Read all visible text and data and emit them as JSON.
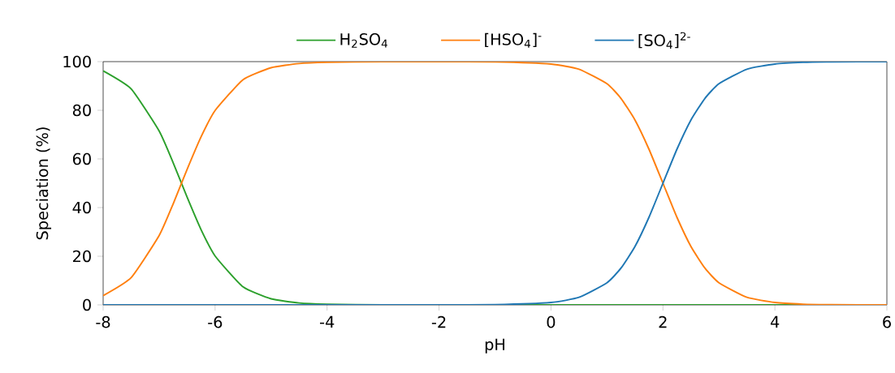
{
  "chart_data": {
    "type": "line",
    "xlabel": "pH",
    "ylabel": "Speciation (%)",
    "x": [
      -8,
      -7.5,
      -7,
      -6.75,
      -6.5,
      -6.25,
      -6,
      -5.5,
      -5,
      -4.5,
      -4,
      -3,
      -2,
      -1,
      0,
      0.5,
      1,
      1.25,
      1.5,
      1.75,
      2,
      2.25,
      2.5,
      2.75,
      3,
      3.5,
      4,
      4.5,
      5,
      6
    ],
    "series": [
      {
        "name": "H$_{2}$SO$_{4}$",
        "color": "#2ca02c",
        "values": [
          96.2,
          88.8,
          71.5,
          58.5,
          44.3,
          30.9,
          20.1,
          7.4,
          2.5,
          0.8,
          0.3,
          0,
          0,
          0,
          0,
          0,
          0,
          0,
          0,
          0,
          0,
          0,
          0,
          0,
          0,
          0,
          0,
          0,
          0,
          0
        ]
      },
      {
        "name": "[HSO$_{4}$]$^{-}$",
        "color": "#ff7f0e",
        "values": [
          3.8,
          11.2,
          28.5,
          41.5,
          55.7,
          69.1,
          79.9,
          92.6,
          97.5,
          99.2,
          99.7,
          100,
          100,
          99.9,
          99.0,
          96.9,
          90.9,
          84.9,
          76.0,
          64.0,
          50,
          36.0,
          24.0,
          15.1,
          9.1,
          3.1,
          1.0,
          0.3,
          0.1,
          0
        ]
      },
      {
        "name": "[SO$_{4}$]$^{2-}$",
        "color": "#1f77b4",
        "values": [
          0,
          0,
          0,
          0,
          0,
          0,
          0,
          0,
          0,
          0,
          0,
          0,
          0,
          0.1,
          1.0,
          3.1,
          9.1,
          15.1,
          24.0,
          36.0,
          50,
          64.0,
          76.0,
          84.9,
          90.9,
          96.9,
          99.0,
          99.7,
          99.9,
          100
        ]
      }
    ],
    "xlim": [
      -8,
      6
    ],
    "ylim": [
      0,
      100
    ],
    "xticks": [
      -8,
      -6,
      -4,
      -2,
      0,
      2,
      4,
      6
    ],
    "yticks": [
      0,
      20,
      40,
      60,
      80,
      100
    ],
    "grid": false,
    "legend": "top",
    "marker": "none",
    "line_style": "solid"
  }
}
